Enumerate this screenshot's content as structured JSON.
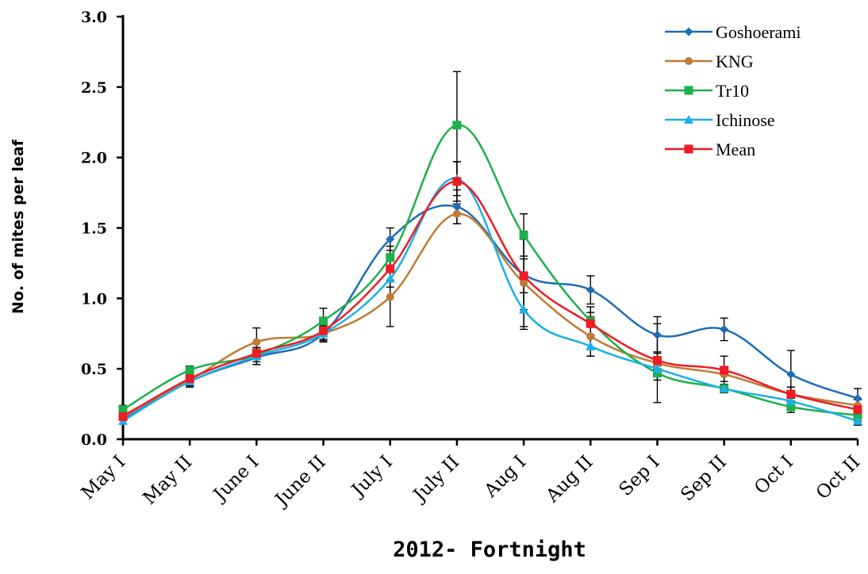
{
  "chart_data": {
    "type": "line",
    "xlabel": "2012- Fortnight",
    "ylabel": "No. of mites per leaf",
    "ylim": [
      0,
      3.0
    ],
    "yticks": [
      "0.0",
      "0.5",
      "1.0",
      "1.5",
      "2.0",
      "2.5",
      "3.0"
    ],
    "categories": [
      "May I",
      "May II",
      "June I",
      "June II",
      "July I",
      "July II",
      "Aug I",
      "Aug II",
      "Sep I",
      "Sep II",
      "Oct I",
      "Oct II"
    ],
    "legend_position": "top-right",
    "series": [
      {
        "name": "Goshoerami",
        "color": "#1f6db5",
        "marker": "diamond",
        "values": [
          0.14,
          0.41,
          0.58,
          0.75,
          1.42,
          1.65,
          1.17,
          1.06,
          0.74,
          0.78,
          0.46,
          0.29
        ],
        "errors": [
          0.03,
          0.03,
          0.05,
          0.05,
          0.08,
          0.12,
          0.25,
          0.1,
          0.13,
          0.08,
          0.17,
          0.07
        ]
      },
      {
        "name": "KNG",
        "color": "#c07a35",
        "marker": "circle",
        "values": [
          0.17,
          0.42,
          0.69,
          0.75,
          1.01,
          1.6,
          1.11,
          0.73,
          0.54,
          0.46,
          0.32,
          0.24
        ],
        "errors": [
          0.03,
          0.04,
          0.1,
          0.04,
          0.21,
          0.07,
          0.33,
          0.14,
          0.28,
          0.05,
          0.05,
          0.04
        ]
      },
      {
        "name": "Tr10",
        "color": "#1db04b",
        "marker": "square",
        "values": [
          0.21,
          0.49,
          0.6,
          0.84,
          1.29,
          2.23,
          1.45,
          0.84,
          0.47,
          0.36,
          0.23,
          0.17
        ],
        "errors": [
          0.03,
          0.03,
          0.05,
          0.09,
          0.08,
          0.38,
          0.15,
          0.1,
          0.05,
          0.03,
          0.04,
          0.04
        ]
      },
      {
        "name": "Ichinose",
        "color": "#1ab0e8",
        "marker": "triangle",
        "values": [
          0.13,
          0.41,
          0.59,
          0.75,
          1.14,
          1.85,
          0.92,
          0.66,
          0.5,
          0.36,
          0.27,
          0.13
        ],
        "errors": [
          0.02,
          0.04,
          0.06,
          0.06,
          0.06,
          0.12,
          0.12,
          0.07,
          0.04,
          0.03,
          0.04,
          0.03
        ]
      },
      {
        "name": "Mean",
        "color": "#ee1c24",
        "marker": "square",
        "values": [
          0.16,
          0.43,
          0.61,
          0.77,
          1.21,
          1.83,
          1.16,
          0.82,
          0.56,
          0.49,
          0.32,
          0.21
        ],
        "errors": [
          0.02,
          0.03,
          0.04,
          0.04,
          0.08,
          0.14,
          0.12,
          0.08,
          0.06,
          0.1,
          0.05,
          0.03
        ]
      }
    ]
  }
}
